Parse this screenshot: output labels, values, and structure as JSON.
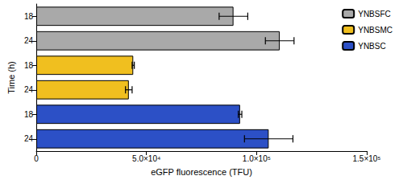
{
  "chart_data": {
    "type": "bar",
    "orientation": "horizontal",
    "x_label": "eGFP fluorescence (TFU)",
    "y_label": "Time (h)",
    "categories": [
      "18",
      "24",
      "18",
      "24",
      "18",
      "24"
    ],
    "series": [
      {
        "name": "YNBSFC",
        "color": "#a9a9a9",
        "values": [
          89500,
          110500,
          null,
          null,
          null,
          null
        ],
        "errors": [
          6500,
          6500,
          null,
          null,
          null,
          null
        ]
      },
      {
        "name": "YNBSMC",
        "color": "#f0bf1f",
        "values": [
          null,
          null,
          44000,
          42000,
          null,
          null
        ],
        "errors": [
          null,
          null,
          500,
          1500,
          null,
          null
        ]
      },
      {
        "name": "YNBSC",
        "color": "#2c50c6",
        "values": [
          null,
          null,
          null,
          null,
          92500,
          105500
        ],
        "errors": [
          null,
          null,
          null,
          null,
          800,
          11000
        ]
      }
    ],
    "xlim": [
      0,
      150000
    ],
    "xticks": [
      0,
      {
        "value": 50000,
        "label": "5.0×10⁴"
      },
      {
        "value": 100000,
        "label": "1.0×10⁵"
      },
      {
        "value": 150000,
        "label": "1.5×10⁵"
      }
    ],
    "legend": "top-right",
    "grid": false
  }
}
